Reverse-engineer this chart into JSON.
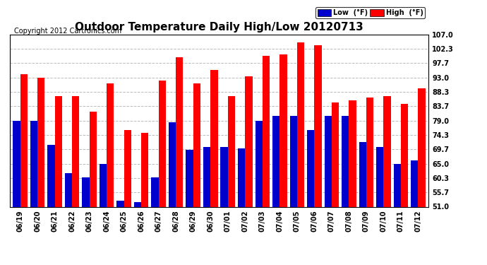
{
  "title": "Outdoor Temperature Daily High/Low 20120713",
  "copyright": "Copyright 2012 Cartronics.com",
  "legend_low": "Low  (°F)",
  "legend_high": "High  (°F)",
  "ylabel_right_ticks": [
    51.0,
    55.7,
    60.3,
    65.0,
    69.7,
    74.3,
    79.0,
    83.7,
    88.3,
    93.0,
    97.7,
    102.3,
    107.0
  ],
  "ylim": [
    51.0,
    107.0
  ],
  "categories": [
    "06/19",
    "06/20",
    "06/21",
    "06/22",
    "06/23",
    "06/24",
    "06/25",
    "06/26",
    "06/27",
    "06/28",
    "06/29",
    "06/30",
    "07/01",
    "07/02",
    "07/03",
    "07/04",
    "07/05",
    "07/06",
    "07/07",
    "07/08",
    "07/09",
    "07/10",
    "07/11",
    "07/12"
  ],
  "high_values": [
    94.0,
    93.0,
    87.0,
    87.0,
    82.0,
    91.0,
    76.0,
    75.0,
    92.0,
    99.5,
    91.0,
    95.5,
    87.0,
    93.5,
    100.0,
    100.5,
    104.5,
    103.5,
    85.0,
    85.5,
    86.5,
    87.0,
    84.5,
    89.5
  ],
  "low_values": [
    79.0,
    79.0,
    71.0,
    62.0,
    60.5,
    65.0,
    53.0,
    52.5,
    60.5,
    78.5,
    69.5,
    70.5,
    70.5,
    70.0,
    79.0,
    80.5,
    80.5,
    76.0,
    80.5,
    80.5,
    72.0,
    70.5,
    65.0,
    66.0
  ],
  "high_color": "#ff0000",
  "low_color": "#0000cc",
  "bg_color": "#ffffff",
  "grid_color": "#bbbbbb",
  "title_fontsize": 11,
  "copyright_fontsize": 7,
  "tick_fontsize": 7,
  "bar_width": 0.42,
  "figure_bg": "#ffffff"
}
